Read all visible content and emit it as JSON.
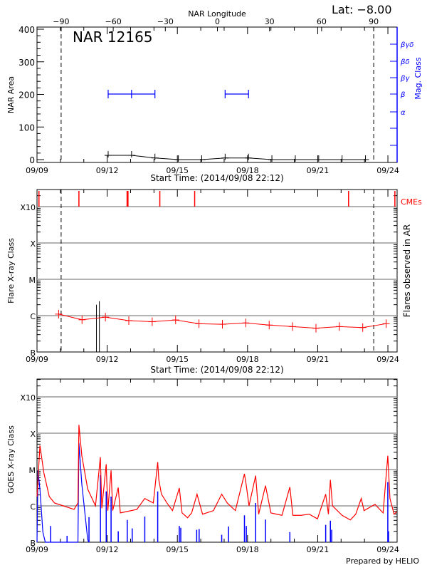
{
  "chart_data": [
    {
      "type": "line",
      "title": "NAR 12165",
      "latitude_label": "Lat:  −8.00",
      "xlabel": "Start Time: (2014/09/08 22:12)",
      "ylabel": "NAR Area",
      "y2label": "Mag. Class",
      "top_axis_label": "NAR Longitude",
      "x_tick_labels": [
        "09/09",
        "09/12",
        "09/15",
        "09/18",
        "09/21",
        "09/24"
      ],
      "y_tick_labels": [
        "0",
        "100",
        "200",
        "300",
        "400"
      ],
      "ylim": [
        0,
        400
      ],
      "longitude_tick_labels": [
        "−90",
        "−60",
        "−30",
        "0",
        "30",
        "60",
        "90"
      ],
      "longitude_ticks": [
        -90,
        -60,
        -30,
        0,
        30,
        60,
        90
      ],
      "limb_markers_longitude": [
        -90,
        90
      ],
      "mag_class_labels": [
        "α",
        "β",
        "βγ",
        "βδ",
        "βγδ"
      ],
      "colors": {
        "area": "#000000",
        "mag_class": "#0000ff"
      },
      "series": [
        {
          "kind": "area",
          "points": [
            [
              "09/12 01:00",
              13
            ],
            [
              "09/13 01:00",
              13
            ],
            [
              "09/14 01:00",
              5
            ],
            [
              "09/15 01:00",
              0
            ],
            [
              "09/16 01:00",
              0
            ],
            [
              "09/17 01:00",
              5
            ],
            [
              "09/18 01:00",
              5
            ],
            [
              "09/19 01:00",
              0
            ],
            [
              "09/20 01:00",
              0
            ],
            [
              "09/21 01:00",
              0
            ],
            [
              "09/22 01:00",
              0
            ],
            [
              "09/23 01:00",
              0
            ]
          ]
        },
        {
          "kind": "mag_class",
          "segments": [
            [
              [
                "09/12 01:00",
                "β"
              ],
              [
                "09/13 01:00",
                "β"
              ],
              [
                "09/14 01:00",
                "β"
              ]
            ],
            [
              [
                "09/17 01:00",
                "β"
              ],
              [
                "09/18 01:00",
                "β"
              ]
            ]
          ]
        }
      ]
    },
    {
      "type": "line",
      "xlabel": "Start Time: (2014/09/08 22:12)",
      "ylabel": "Flare X-ray Class",
      "y2label": "Flares observed in AR",
      "cme_label": "CMEs",
      "x_tick_labels": [
        "09/09",
        "09/12",
        "09/15",
        "09/18",
        "09/21",
        "09/24"
      ],
      "y_tick_labels": [
        "B",
        "C",
        "M",
        "X",
        "X10"
      ],
      "y_scale": "log",
      "grid": true,
      "colors": {
        "cme": "#ff0000",
        "background": "#ff0000",
        "flares": "#000000"
      },
      "cmes": [
        "09/09 02:00",
        "09/10 19:00",
        "09/12 20:25",
        "09/12 21:20",
        "09/14 06:00",
        "09/15 17:45",
        "09/22 07:40",
        "09/24 07:10"
      ],
      "flares": [
        [
          "09/11 13:00",
          "C2.0"
        ],
        [
          "09/11 16:00",
          "C2.5"
        ]
      ],
      "background": [
        [
          "09/09 22:12",
          "C1.1"
        ],
        [
          "09/10 22:12",
          "B7.7"
        ],
        [
          "09/11 22:12",
          "B9.1"
        ],
        [
          "09/12 22:12",
          "B7.3"
        ],
        [
          "09/13 22:12",
          "B6.8"
        ],
        [
          "09/14 22:12",
          "B7.6"
        ],
        [
          "09/15 22:12",
          "B6.0"
        ],
        [
          "09/16 22:12",
          "B5.8"
        ],
        [
          "09/17 22:12",
          "B6.3"
        ],
        [
          "09/18 22:12",
          "B5.5"
        ],
        [
          "09/19 22:12",
          "B5.0"
        ],
        [
          "09/20 22:12",
          "B4.5"
        ],
        [
          "09/21 22:12",
          "B5.0"
        ],
        [
          "09/22 22:12",
          "B4.7"
        ],
        [
          "09/23 22:12",
          "B6.0"
        ]
      ]
    },
    {
      "type": "line",
      "ylabel": "GOES X-ray Class",
      "x_tick_labels": [
        "09/09",
        "09/12",
        "09/15",
        "09/18",
        "09/21",
        "09/24"
      ],
      "y_tick_labels": [
        "B",
        "C",
        "M",
        "X",
        "X10"
      ],
      "y_scale": "log",
      "grid": true,
      "colors": {
        "long": "#ff0000",
        "short": "#0000ff"
      },
      "long": [
        [
          "09/09 00:00",
          "C1.8"
        ],
        [
          "09/09 03:00",
          "M4.6"
        ],
        [
          "09/09 07:00",
          "C8.2"
        ],
        [
          "09/09 12:36",
          "C1.8"
        ],
        [
          "09/09 18:00",
          "C1.2"
        ],
        [
          "09/10 03:00",
          "C1.0"
        ],
        [
          "09/10 14:00",
          "B8.0"
        ],
        [
          "09/10 18:00",
          "C1.2"
        ],
        [
          "09/10 19:00",
          "X1.7"
        ],
        [
          "09/10 22:00",
          "M2.4"
        ],
        [
          "09/11 04:00",
          "C2.9"
        ],
        [
          "09/11 12:00",
          "C1.0"
        ],
        [
          "09/11 17:00",
          "M2.2"
        ],
        [
          "09/11 18:30",
          "B8.6"
        ],
        [
          "09/11 23:00",
          "M1.4"
        ],
        [
          "09/12 00:40",
          "B7.4"
        ],
        [
          "09/12 04:00",
          "C9.5"
        ],
        [
          "09/12 05:40",
          "B7.4"
        ],
        [
          "09/12 11:20",
          "C3.2"
        ],
        [
          "09/12 13:30",
          "B6.4"
        ],
        [
          "09/13 06:30",
          "B8.0"
        ],
        [
          "09/13 14:30",
          "C1.6"
        ],
        [
          "09/13 23:20",
          "C1.2"
        ],
        [
          "09/14 03:50",
          "M1.6"
        ],
        [
          "09/14 05:00",
          "C5.2"
        ],
        [
          "09/14 07:40",
          "C2.1"
        ],
        [
          "09/14 13:20",
          "C1.2"
        ],
        [
          "09/14 19:00",
          "B7.4"
        ],
        [
          "09/15 02:00",
          "C3.1"
        ],
        [
          "09/15 04:50",
          "B6.4"
        ],
        [
          "09/15 10:30",
          "B4.7"
        ],
        [
          "09/15 14:40",
          "B6.4"
        ],
        [
          "09/15 20:10",
          "C2.1"
        ],
        [
          "09/16 01:50",
          "B5.9"
        ],
        [
          "09/16 13:00",
          "B7.4"
        ],
        [
          "09/16 21:30",
          "C2.1"
        ],
        [
          "09/17 03:10",
          "C1.2"
        ],
        [
          "09/17 11:30",
          "B7.4"
        ],
        [
          "09/17 20:50",
          "C7.6"
        ],
        [
          "09/17 22:45",
          "C3.6"
        ],
        [
          "09/18 01:30",
          "C1.0"
        ],
        [
          "09/18 08:20",
          "C6.8"
        ],
        [
          "09/18 11:25",
          "B5.9"
        ],
        [
          "09/18 18:25",
          "C3.6"
        ],
        [
          "09/19 00:00",
          "B6.4"
        ],
        [
          "09/19 11:20",
          "B5.5"
        ],
        [
          "09/19 19:25",
          "C3.3"
        ],
        [
          "09/19 22:30",
          "B5.5"
        ],
        [
          "09/20 06:55",
          "B5.5"
        ],
        [
          "09/20 15:20",
          "B5.9"
        ],
        [
          "09/20 23:45",
          "B4.4"
        ],
        [
          "09/21 08:10",
          "C2.1"
        ],
        [
          "09/21 11:00",
          "B5.9"
        ],
        [
          "09/21 13:00",
          "C5.2"
        ],
        [
          "09/21 15:10",
          "C1.0"
        ],
        [
          "09/22 01:00",
          "B5.5"
        ],
        [
          "09/22 09:25",
          "B4.1"
        ],
        [
          "09/22 15:00",
          "B5.9"
        ],
        [
          "09/22 20:40",
          "C1.6"
        ],
        [
          "09/22 23:30",
          "B7.4"
        ],
        [
          "09/23 10:45",
          "C1.1"
        ],
        [
          "09/23 19:05",
          "B6.4"
        ],
        [
          "09/23 23:55",
          "M2.4"
        ],
        [
          "09/24 02:05",
          "C1.6"
        ],
        [
          "09/24 06:20",
          "B5.9"
        ],
        [
          "09/24 09:05",
          "B6.9"
        ]
      ],
      "short": [
        [
          "09/09 00:00",
          "B1.0"
        ],
        [
          "09/09 01:00",
          "C9.5"
        ],
        [
          "09/09 03:00",
          "C2.9"
        ],
        [
          "09/09 06:00",
          "B1.9"
        ],
        [
          "09/09 08:30",
          "B1.0"
        ],
        [
          "09/10 18:00",
          "B1.0"
        ],
        [
          "09/10 19:00",
          "M5.4"
        ],
        [
          "09/10 22:00",
          "C3.9"
        ],
        [
          "09/11 04:00",
          "B1.2"
        ],
        [
          "09/11 05:00",
          "B1.0"
        ]
      ],
      "short_spikes": [
        [
          "09/09 14:00",
          "B2.8"
        ],
        [
          "09/10 06:50",
          "B1.5"
        ],
        [
          "09/11 05:20",
          "B4.9"
        ],
        [
          "09/11 17:05",
          "C7.1"
        ],
        [
          "09/11 23:00",
          "C2.5"
        ],
        [
          "09/12 04:00",
          "C1.8"
        ],
        [
          "09/12 11:20",
          "B2.0"
        ],
        [
          "09/12 20:35",
          "B4.1"
        ],
        [
          "09/13 01:40",
          "B2.4"
        ],
        [
          "09/13 14:35",
          "B5.1"
        ],
        [
          "09/14 03:50",
          "C2.5"
        ],
        [
          "09/15 02:00",
          "B2.8"
        ],
        [
          "09/15 03:30",
          "B2.5"
        ],
        [
          "09/15 19:50",
          "B2.2"
        ],
        [
          "09/15 22:20",
          "B2.3"
        ],
        [
          "09/16 21:30",
          "B1.6"
        ],
        [
          "09/17 04:30",
          "B2.7"
        ],
        [
          "09/17 20:50",
          "B5.5"
        ],
        [
          "09/17 22:45",
          "B2.8"
        ],
        [
          "09/18 08:20",
          "C1.2"
        ],
        [
          "09/18 18:25",
          "B4.2"
        ],
        [
          "09/19 19:25",
          "B1.9"
        ],
        [
          "09/21 08:10",
          "B3.0"
        ],
        [
          "09/21 13:00",
          "B3.9"
        ],
        [
          "09/21 14:20",
          "B2.2"
        ],
        [
          "09/23 23:55",
          "C4.5"
        ],
        [
          "09/24 00:40",
          "B2.0"
        ]
      ],
      "credit": "Prepared by HELIO"
    }
  ]
}
